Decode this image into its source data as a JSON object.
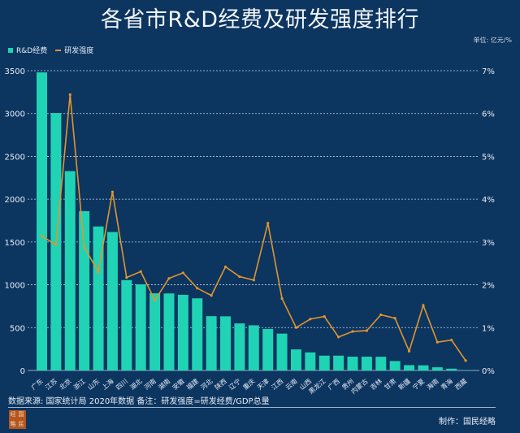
{
  "title": "各省市R&D经费及研发强度排行",
  "unit": "单位: 亿元/%",
  "legend": {
    "bar": "R&D经费",
    "line": "研发强度"
  },
  "colors": {
    "background": "#0c3560",
    "bar": "#1fd3b4",
    "line": "#e2952e"
  },
  "source": "数据来源: 国家统计局 2020年数据  备注：研发强度=研发经费/GDP总量",
  "credit": "制作：国民经略",
  "logo_text": "经国略民",
  "chart_data": {
    "type": "bar+line",
    "categories": [
      "广东",
      "江苏",
      "北京",
      "浙江",
      "山东",
      "上海",
      "四川",
      "湖北",
      "河南",
      "湖南",
      "安徽",
      "福建",
      "河北",
      "陕西",
      "辽宁",
      "重庆",
      "天津",
      "江西",
      "云南",
      "山西",
      "黑龙江",
      "广西",
      "贵州",
      "内蒙古",
      "吉林",
      "甘肃",
      "新疆",
      "宁夏",
      "海南",
      "青海",
      "西藏"
    ],
    "series": [
      {
        "name": "R&D经费",
        "type": "bar",
        "axis": "left",
        "values": [
          3480,
          3006,
          2327,
          1860,
          1681,
          1616,
          1055,
          1006,
          901,
          899,
          883,
          842,
          634,
          632,
          549,
          527,
          485,
          430,
          246,
          211,
          173,
          173,
          161,
          161,
          160,
          110,
          62,
          60,
          37,
          21,
          4
        ]
      },
      {
        "name": "研发强度",
        "type": "line",
        "axis": "right",
        "values": [
          3.14,
          2.93,
          6.44,
          2.88,
          2.3,
          4.17,
          2.17,
          2.31,
          1.64,
          2.15,
          2.28,
          1.92,
          1.75,
          2.42,
          2.19,
          2.11,
          3.44,
          1.68,
          1.0,
          1.2,
          1.26,
          0.78,
          0.91,
          0.93,
          1.3,
          1.22,
          0.45,
          1.52,
          0.66,
          0.71,
          0.23
        ]
      }
    ],
    "ylim_left": [
      0,
      3500
    ],
    "yticks_left": [
      "0",
      "500",
      "1000",
      "1500",
      "2000",
      "2500",
      "3000",
      "3500"
    ],
    "ylim_right": [
      0,
      7
    ],
    "yticks_right": [
      "0%",
      "1%",
      "2%",
      "3%",
      "4%",
      "5%",
      "6%",
      "7%"
    ],
    "grid": true,
    "legend_position": "top-left"
  }
}
